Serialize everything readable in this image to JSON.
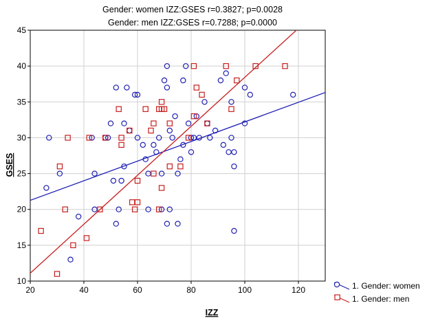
{
  "chart_data": {
    "type": "scatter",
    "title_lines": [
      "Gender: women IZZ:GSES r=0.3827; p=0.0028",
      "Gender: men IZZ:GSES r=0.7288; p=0.0000"
    ],
    "xlabel": "IZZ",
    "ylabel": "GSES",
    "xlim": [
      20,
      130
    ],
    "ylim": [
      10,
      45
    ],
    "xticks": [
      20,
      40,
      60,
      80,
      100,
      120
    ],
    "yticks": [
      10,
      15,
      20,
      25,
      30,
      35,
      40,
      45
    ],
    "grid": true,
    "legend_position": "bottom-right",
    "series": [
      {
        "name": "1. Gender: women",
        "marker": "circle",
        "color": "#1f1fb4",
        "regression": {
          "intercept": 18.53,
          "slope": 0.1368
        },
        "points": [
          [
            26,
            23
          ],
          [
            27,
            30
          ],
          [
            31,
            25
          ],
          [
            35,
            13
          ],
          [
            38,
            19
          ],
          [
            43,
            30
          ],
          [
            44,
            20
          ],
          [
            44,
            25
          ],
          [
            48,
            30
          ],
          [
            49,
            30
          ],
          [
            50,
            32
          ],
          [
            51,
            24
          ],
          [
            52,
            37
          ],
          [
            52,
            18
          ],
          [
            53,
            20
          ],
          [
            54,
            24
          ],
          [
            55,
            26
          ],
          [
            55,
            32
          ],
          [
            56,
            37
          ],
          [
            57,
            31
          ],
          [
            59,
            36
          ],
          [
            60,
            36
          ],
          [
            60,
            30
          ],
          [
            62,
            29
          ],
          [
            63,
            27
          ],
          [
            64,
            25
          ],
          [
            64,
            20
          ],
          [
            66,
            29
          ],
          [
            67,
            28
          ],
          [
            68,
            30
          ],
          [
            69,
            20
          ],
          [
            69,
            25
          ],
          [
            70,
            38
          ],
          [
            71,
            40
          ],
          [
            71,
            37
          ],
          [
            71,
            18
          ],
          [
            72,
            31
          ],
          [
            72,
            20
          ],
          [
            73,
            30
          ],
          [
            74,
            33
          ],
          [
            75,
            25
          ],
          [
            75,
            18
          ],
          [
            76,
            27
          ],
          [
            77,
            38
          ],
          [
            77,
            29
          ],
          [
            78,
            40
          ],
          [
            79,
            32
          ],
          [
            80,
            30
          ],
          [
            80,
            28
          ],
          [
            81,
            30
          ],
          [
            82,
            33
          ],
          [
            83,
            30
          ],
          [
            85,
            35
          ],
          [
            86,
            32
          ],
          [
            87,
            30
          ],
          [
            89,
            31
          ],
          [
            91,
            38
          ],
          [
            92,
            29
          ],
          [
            93,
            39
          ],
          [
            94,
            28
          ],
          [
            95,
            35
          ],
          [
            95,
            30
          ],
          [
            96,
            26
          ],
          [
            96,
            17
          ],
          [
            96,
            28
          ],
          [
            100,
            37
          ],
          [
            100,
            32
          ],
          [
            102,
            36
          ],
          [
            118,
            36
          ]
        ]
      },
      {
        "name": "1. Gender: men",
        "marker": "square",
        "color": "#c81e1e",
        "regression": {
          "intercept": 4.27,
          "slope": 0.3416
        },
        "points": [
          [
            24,
            17
          ],
          [
            30,
            11
          ],
          [
            31,
            26
          ],
          [
            33,
            20
          ],
          [
            34,
            30
          ],
          [
            36,
            15
          ],
          [
            41,
            16
          ],
          [
            42,
            30
          ],
          [
            46,
            20
          ],
          [
            48,
            30
          ],
          [
            53,
            34
          ],
          [
            54,
            29
          ],
          [
            54,
            30
          ],
          [
            57,
            31
          ],
          [
            58,
            21
          ],
          [
            59,
            20
          ],
          [
            60,
            21
          ],
          [
            60,
            24
          ],
          [
            63,
            34
          ],
          [
            65,
            31
          ],
          [
            66,
            32
          ],
          [
            66,
            25
          ],
          [
            68,
            20
          ],
          [
            68,
            34
          ],
          [
            69,
            35
          ],
          [
            69,
            34
          ],
          [
            69,
            23
          ],
          [
            70,
            34
          ],
          [
            72,
            26
          ],
          [
            72,
            32
          ],
          [
            76,
            26
          ],
          [
            79,
            30
          ],
          [
            81,
            40
          ],
          [
            81,
            33
          ],
          [
            82,
            37
          ],
          [
            84,
            36
          ],
          [
            86,
            32
          ],
          [
            93,
            40
          ],
          [
            95,
            34
          ],
          [
            97,
            38
          ],
          [
            104,
            40
          ],
          [
            115,
            40
          ]
        ]
      }
    ]
  }
}
